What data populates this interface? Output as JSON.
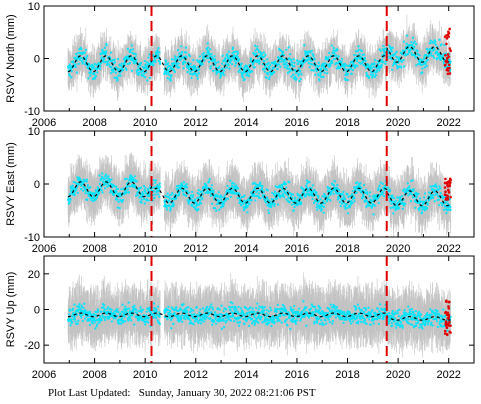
{
  "footer": {
    "label": "Plot Last Updated:",
    "value": "Sunday, January 30, 2022 08:21:06 PST"
  },
  "colors": {
    "observations": "#00e5ff",
    "error_bars": "#b4b4b4",
    "model_fit": "#000000",
    "recent_points": "#e00000",
    "events": "#e00000"
  },
  "chart_data": [
    {
      "type": "scatter",
      "ylabel": "RSVY North (mm)",
      "xlim": [
        2006,
        2023
      ],
      "ylim": [
        -10,
        10
      ],
      "yticks": [
        -10,
        0,
        10
      ],
      "xticks": [
        2006,
        2008,
        2010,
        2012,
        2014,
        2016,
        2018,
        2020,
        2022
      ],
      "show_xtick_labels": true,
      "grid": false,
      "event_lines_x": [
        2010.25,
        2019.55
      ],
      "series": [
        {
          "role": "observations",
          "x_start": 2006.95,
          "x_end": 2022.08,
          "base": -1.0,
          "amplitude": 1.5,
          "period_yr": 1.0,
          "scatter_mm": 2.0,
          "errorbar_mm": 3.0,
          "offset_after_2019_55": 1.8
        },
        {
          "role": "model_fit",
          "x_start": 2006.95,
          "x_end": 2022.08,
          "base": -1.0,
          "amplitude": 1.5,
          "period_yr": 1.0,
          "offset_after_2019_55": 1.8
        },
        {
          "role": "recent_points",
          "x_start": 2021.85,
          "x_end": 2022.08,
          "y_range": [
            -3,
            6
          ]
        }
      ]
    },
    {
      "type": "scatter",
      "ylabel": "RSVY East (mm)",
      "xlim": [
        2006,
        2023
      ],
      "ylim": [
        -10,
        10
      ],
      "yticks": [
        -10,
        0,
        10
      ],
      "xticks": [
        2006,
        2008,
        2010,
        2012,
        2014,
        2016,
        2018,
        2020,
        2022
      ],
      "show_xtick_labels": true,
      "grid": false,
      "event_lines_x": [
        2010.25,
        2019.55
      ],
      "series": [
        {
          "role": "observations",
          "x_start": 2006.95,
          "x_end": 2022.08,
          "base": -1.0,
          "amplitude": 1.4,
          "period_yr": 1.0,
          "scatter_mm": 1.8,
          "errorbar_mm": 3.5,
          "offset_after_2010_25": -1.2,
          "offset_after_2019_55": -0.5
        },
        {
          "role": "model_fit",
          "x_start": 2006.95,
          "x_end": 2022.08,
          "base": -1.0,
          "amplitude": 1.4,
          "period_yr": 1.0,
          "offset_after_2010_25": -1.2,
          "offset_after_2019_55": -0.5
        },
        {
          "role": "recent_points",
          "x_start": 2021.85,
          "x_end": 2022.08,
          "y_range": [
            -3,
            1
          ]
        }
      ]
    },
    {
      "type": "scatter",
      "ylabel": "RSVY Up (mm)",
      "xlim": [
        2006,
        2023
      ],
      "ylim": [
        -30,
        30
      ],
      "yticks": [
        -20,
        0,
        20
      ],
      "xticks": [
        2006,
        2008,
        2010,
        2012,
        2014,
        2016,
        2018,
        2020,
        2022
      ],
      "show_xtick_labels": true,
      "grid": false,
      "event_lines_x": [
        2010.25,
        2019.55
      ],
      "series": [
        {
          "role": "observations",
          "x_start": 2006.95,
          "x_end": 2022.08,
          "base": -3.0,
          "amplitude": 1.0,
          "period_yr": 1.0,
          "scatter_mm": 5.5,
          "errorbar_mm": 12.0,
          "offset_after_2019_55": -2.0
        },
        {
          "role": "model_fit",
          "x_start": 2006.95,
          "x_end": 2022.08,
          "base": -3.0,
          "amplitude": 1.0,
          "period_yr": 1.0,
          "offset_after_2019_55": -2.0
        },
        {
          "role": "recent_points",
          "x_start": 2021.85,
          "x_end": 2022.08,
          "y_range": [
            -15,
            5
          ]
        }
      ]
    }
  ]
}
